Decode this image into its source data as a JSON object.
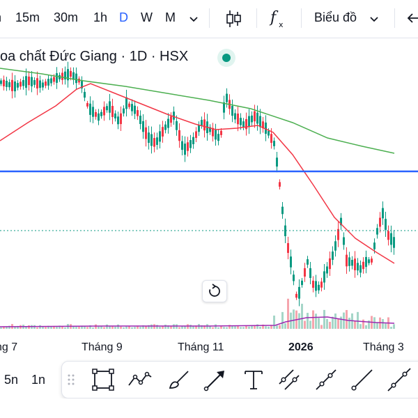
{
  "toolbar": {
    "timeframes": [
      "n",
      "15m",
      "30m",
      "1h",
      "D",
      "W",
      "M"
    ],
    "active_timeframe": "D",
    "chart_type_label": "Biểu đồ"
  },
  "symbol": {
    "title": "oa chất Đức Giang · 1D · HSX",
    "status_color": "#089981"
  },
  "xaxis": {
    "labels": [
      "ng 7",
      "Tháng 9",
      "Tháng 11",
      "2026",
      "Tháng 3"
    ]
  },
  "bottom": {
    "ranges": [
      "5n",
      "1n"
    ]
  },
  "colors": {
    "up": "#089981",
    "down": "#f23645",
    "ma_short": "#f23645",
    "ma_long": "#4caf50",
    "level_line": "#2962ff",
    "volume_ma": "#9c27b0"
  }
}
